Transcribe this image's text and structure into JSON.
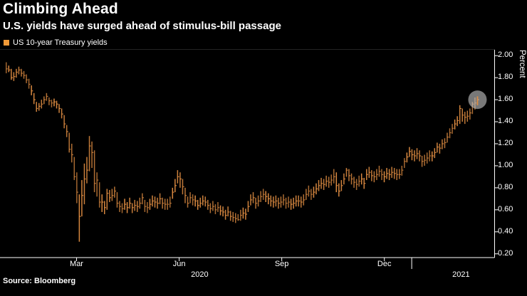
{
  "header": {
    "title": "Climbing Ahead",
    "subtitle": "U.S. yields have surged ahead of stimulus-bill passage"
  },
  "legend": {
    "label": "US 10-year Treasury yields",
    "marker_color": "#F29A38"
  },
  "source": {
    "label": "Source: Bloomberg"
  },
  "chart_data": {
    "type": "candlestick",
    "title": "Climbing Ahead",
    "subtitle": "U.S. yields have surged ahead of stimulus-bill passage",
    "series_name": "US 10-year Treasury yields",
    "ylabel": "Percent",
    "ylim": [
      0.166,
      2.053
    ],
    "grid": false,
    "legend_position": "top-left",
    "bar_color": "#DE8C42",
    "axis_color": "#FFFFFF",
    "y_ticks": [
      {
        "label": "2.00",
        "value": 2.0
      },
      {
        "label": "1.80",
        "value": 1.8
      },
      {
        "label": "1.60",
        "value": 1.6
      },
      {
        "label": "1.40",
        "value": 1.4
      },
      {
        "label": "1.20",
        "value": 1.2
      },
      {
        "label": "1.00",
        "value": 1.0
      },
      {
        "label": "0.80",
        "value": 0.8
      },
      {
        "label": "0.60",
        "value": 0.6
      },
      {
        "label": "0.40",
        "value": 0.4
      },
      {
        "label": "0.20",
        "value": 0.2
      }
    ],
    "x_ticks": [
      {
        "label": "Mar",
        "pos": 0.148
      },
      {
        "label": "Jun",
        "pos": 0.358
      },
      {
        "label": "Sep",
        "pos": 0.568
      },
      {
        "label": "Dec",
        "pos": 0.778
      }
    ],
    "year_break_pos": 0.834,
    "year_labels": [
      {
        "label": "2020",
        "pos": 0.4
      },
      {
        "label": "2021",
        "pos": 0.935
      }
    ],
    "point_span": [
      0.004,
      0.9686
    ],
    "points_format": [
      "low",
      "high",
      "close"
    ],
    "points": [
      [
        1.84,
        1.94,
        1.88
      ],
      [
        1.85,
        1.91,
        1.87
      ],
      [
        1.78,
        1.88,
        1.8
      ],
      [
        1.77,
        1.85,
        1.81
      ],
      [
        1.8,
        1.88,
        1.85
      ],
      [
        1.83,
        1.9,
        1.87
      ],
      [
        1.81,
        1.88,
        1.84
      ],
      [
        1.79,
        1.86,
        1.82
      ],
      [
        1.75,
        1.83,
        1.78
      ],
      [
        1.7,
        1.79,
        1.74
      ],
      [
        1.64,
        1.73,
        1.68
      ],
      [
        1.56,
        1.66,
        1.6
      ],
      [
        1.49,
        1.58,
        1.52
      ],
      [
        1.5,
        1.57,
        1.54
      ],
      [
        1.52,
        1.6,
        1.56
      ],
      [
        1.56,
        1.63,
        1.6
      ],
      [
        1.59,
        1.66,
        1.63
      ],
      [
        1.55,
        1.62,
        1.59
      ],
      [
        1.53,
        1.6,
        1.57
      ],
      [
        1.54,
        1.61,
        1.58
      ],
      [
        1.52,
        1.59,
        1.56
      ],
      [
        1.48,
        1.56,
        1.52
      ],
      [
        1.43,
        1.52,
        1.47
      ],
      [
        1.34,
        1.46,
        1.38
      ],
      [
        1.26,
        1.37,
        1.31
      ],
      [
        1.12,
        1.3,
        1.15
      ],
      [
        1.03,
        1.2,
        1.1
      ],
      [
        0.87,
        1.08,
        0.9
      ],
      [
        0.66,
        0.94,
        0.76
      ],
      [
        0.31,
        0.74,
        0.54
      ],
      [
        0.54,
        0.87,
        0.73
      ],
      [
        0.65,
        1.02,
        0.88
      ],
      [
        0.84,
        1.08,
        0.96
      ],
      [
        0.95,
        1.27,
        1.18
      ],
      [
        0.98,
        1.22,
        1.12
      ],
      [
        0.76,
        1.14,
        0.84
      ],
      [
        0.72,
        0.94,
        0.87
      ],
      [
        0.62,
        0.85,
        0.67
      ],
      [
        0.58,
        0.74,
        0.67
      ],
      [
        0.56,
        0.68,
        0.62
      ],
      [
        0.6,
        0.79,
        0.75
      ],
      [
        0.67,
        0.78,
        0.71
      ],
      [
        0.68,
        0.79,
        0.73
      ],
      [
        0.71,
        0.81,
        0.77
      ],
      [
        0.62,
        0.76,
        0.66
      ],
      [
        0.58,
        0.68,
        0.63
      ],
      [
        0.57,
        0.66,
        0.61
      ],
      [
        0.6,
        0.7,
        0.65
      ],
      [
        0.57,
        0.67,
        0.62
      ],
      [
        0.61,
        0.71,
        0.66
      ],
      [
        0.57,
        0.66,
        0.62
      ],
      [
        0.59,
        0.69,
        0.64
      ],
      [
        0.58,
        0.68,
        0.63
      ],
      [
        0.61,
        0.71,
        0.66
      ],
      [
        0.65,
        0.75,
        0.71
      ],
      [
        0.58,
        0.69,
        0.63
      ],
      [
        0.57,
        0.67,
        0.62
      ],
      [
        0.6,
        0.7,
        0.65
      ],
      [
        0.63,
        0.73,
        0.68
      ],
      [
        0.62,
        0.72,
        0.67
      ],
      [
        0.61,
        0.71,
        0.66
      ],
      [
        0.65,
        0.75,
        0.7
      ],
      [
        0.61,
        0.71,
        0.66
      ],
      [
        0.6,
        0.7,
        0.65
      ],
      [
        0.6,
        0.7,
        0.65
      ],
      [
        0.62,
        0.72,
        0.66
      ],
      [
        0.7,
        0.8,
        0.76
      ],
      [
        0.76,
        0.88,
        0.82
      ],
      [
        0.84,
        0.96,
        0.9
      ],
      [
        0.8,
        0.94,
        0.88
      ],
      [
        0.74,
        0.88,
        0.81
      ],
      [
        0.66,
        0.8,
        0.73
      ],
      [
        0.62,
        0.72,
        0.66
      ],
      [
        0.66,
        0.76,
        0.71
      ],
      [
        0.64,
        0.74,
        0.69
      ],
      [
        0.63,
        0.73,
        0.68
      ],
      [
        0.6,
        0.69,
        0.64
      ],
      [
        0.62,
        0.71,
        0.66
      ],
      [
        0.64,
        0.73,
        0.68
      ],
      [
        0.63,
        0.72,
        0.67
      ],
      [
        0.6,
        0.69,
        0.64
      ],
      [
        0.57,
        0.66,
        0.61
      ],
      [
        0.59,
        0.68,
        0.63
      ],
      [
        0.56,
        0.65,
        0.6
      ],
      [
        0.58,
        0.67,
        0.62
      ],
      [
        0.55,
        0.64,
        0.59
      ],
      [
        0.54,
        0.63,
        0.58
      ],
      [
        0.51,
        0.6,
        0.55
      ],
      [
        0.54,
        0.63,
        0.58
      ],
      [
        0.5,
        0.59,
        0.54
      ],
      [
        0.49,
        0.58,
        0.53
      ],
      [
        0.48,
        0.57,
        0.52
      ],
      [
        0.5,
        0.56,
        0.51
      ],
      [
        0.5,
        0.6,
        0.55
      ],
      [
        0.52,
        0.62,
        0.57
      ],
      [
        0.51,
        0.61,
        0.56
      ],
      [
        0.58,
        0.68,
        0.63
      ],
      [
        0.64,
        0.74,
        0.69
      ],
      [
        0.66,
        0.76,
        0.71
      ],
      [
        0.61,
        0.71,
        0.66
      ],
      [
        0.63,
        0.73,
        0.68
      ],
      [
        0.67,
        0.77,
        0.72
      ],
      [
        0.69,
        0.79,
        0.74
      ],
      [
        0.67,
        0.77,
        0.72
      ],
      [
        0.65,
        0.75,
        0.7
      ],
      [
        0.63,
        0.73,
        0.68
      ],
      [
        0.62,
        0.72,
        0.67
      ],
      [
        0.63,
        0.73,
        0.68
      ],
      [
        0.61,
        0.71,
        0.66
      ],
      [
        0.62,
        0.72,
        0.67
      ],
      [
        0.64,
        0.74,
        0.69
      ],
      [
        0.61,
        0.71,
        0.66
      ],
      [
        0.62,
        0.72,
        0.67
      ],
      [
        0.6,
        0.7,
        0.65
      ],
      [
        0.61,
        0.71,
        0.66
      ],
      [
        0.63,
        0.73,
        0.68
      ],
      [
        0.63,
        0.73,
        0.68
      ],
      [
        0.62,
        0.72,
        0.67
      ],
      [
        0.64,
        0.74,
        0.69
      ],
      [
        0.69,
        0.79,
        0.74
      ],
      [
        0.72,
        0.82,
        0.77
      ],
      [
        0.69,
        0.79,
        0.74
      ],
      [
        0.71,
        0.81,
        0.76
      ],
      [
        0.74,
        0.84,
        0.79
      ],
      [
        0.77,
        0.87,
        0.82
      ],
      [
        0.79,
        0.89,
        0.84
      ],
      [
        0.78,
        0.88,
        0.83
      ],
      [
        0.81,
        0.91,
        0.86
      ],
      [
        0.8,
        0.9,
        0.85
      ],
      [
        0.82,
        0.92,
        0.87
      ],
      [
        0.84,
        0.97,
        0.9
      ],
      [
        0.76,
        0.94,
        0.82
      ],
      [
        0.72,
        0.84,
        0.77
      ],
      [
        0.77,
        0.87,
        0.82
      ],
      [
        0.83,
        0.93,
        0.88
      ],
      [
        0.9,
        0.98,
        0.96
      ],
      [
        0.86,
        0.97,
        0.91
      ],
      [
        0.83,
        0.93,
        0.88
      ],
      [
        0.8,
        0.9,
        0.85
      ],
      [
        0.78,
        0.88,
        0.83
      ],
      [
        0.81,
        0.91,
        0.86
      ],
      [
        0.83,
        0.93,
        0.88
      ],
      [
        0.79,
        0.89,
        0.84
      ],
      [
        0.87,
        0.97,
        0.92
      ],
      [
        0.89,
        0.99,
        0.94
      ],
      [
        0.86,
        0.96,
        0.91
      ],
      [
        0.85,
        0.95,
        0.9
      ],
      [
        0.87,
        0.97,
        0.92
      ],
      [
        0.9,
        1.0,
        0.95
      ],
      [
        0.87,
        0.97,
        0.92
      ],
      [
        0.85,
        0.95,
        0.9
      ],
      [
        0.88,
        0.98,
        0.93
      ],
      [
        0.87,
        0.97,
        0.92
      ],
      [
        0.89,
        0.99,
        0.94
      ],
      [
        0.88,
        0.98,
        0.93
      ],
      [
        0.87,
        0.97,
        0.92
      ],
      [
        0.88,
        0.97,
        0.92
      ],
      [
        0.91,
        1.0,
        0.96
      ],
      [
        0.98,
        1.07,
        1.04
      ],
      [
        1.03,
        1.12,
        1.08
      ],
      [
        1.08,
        1.17,
        1.13
      ],
      [
        1.05,
        1.15,
        1.1
      ],
      [
        1.04,
        1.14,
        1.09
      ],
      [
        1.06,
        1.16,
        1.11
      ],
      [
        1.04,
        1.14,
        1.09
      ],
      [
        0.99,
        1.09,
        1.04
      ],
      [
        1.0,
        1.1,
        1.05
      ],
      [
        1.02,
        1.12,
        1.07
      ],
      [
        1.04,
        1.14,
        1.09
      ],
      [
        1.04,
        1.13,
        1.09
      ],
      [
        1.07,
        1.16,
        1.12
      ],
      [
        1.12,
        1.21,
        1.17
      ],
      [
        1.11,
        1.2,
        1.16
      ],
      [
        1.15,
        1.24,
        1.2
      ],
      [
        1.16,
        1.25,
        1.21
      ],
      [
        1.21,
        1.3,
        1.26
      ],
      [
        1.25,
        1.34,
        1.3
      ],
      [
        1.29,
        1.38,
        1.34
      ],
      [
        1.33,
        1.42,
        1.38
      ],
      [
        1.36,
        1.45,
        1.41
      ],
      [
        1.38,
        1.55,
        1.52
      ],
      [
        1.4,
        1.52,
        1.46
      ],
      [
        1.38,
        1.49,
        1.44
      ],
      [
        1.4,
        1.5,
        1.45
      ],
      [
        1.42,
        1.52,
        1.48
      ],
      [
        1.47,
        1.58,
        1.56
      ],
      [
        1.51,
        1.62,
        1.57
      ],
      [
        1.55,
        1.63,
        1.6
      ]
    ],
    "highlight": {
      "point_index": 187,
      "value": 1.6,
      "radius": 13,
      "color": "#C2C2C2",
      "opacity": 0.62
    }
  }
}
